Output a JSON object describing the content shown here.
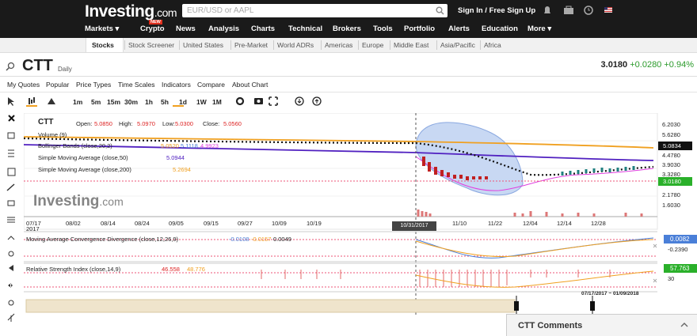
{
  "header": {
    "logo": "Investing",
    "logo_suffix": ".com",
    "search_placeholder": "EUR/USD or AAPL",
    "auth": "Sign In / Free Sign Up"
  },
  "nav": [
    "Markets ▾",
    "Crypto",
    "News",
    "Analysis",
    "Charts",
    "Technical",
    "Brokers",
    "Tools",
    "Portfolio",
    "Alerts",
    "Education",
    "More ▾"
  ],
  "crypto_badge": "NEW",
  "subnav": [
    "Stocks",
    "Stock Screener",
    "United States",
    "Pre-Market",
    "World ADRs",
    "Americas",
    "Europe",
    "Middle East",
    "Asia/Pacific",
    "Africa"
  ],
  "instrument": {
    "symbol": "CTT",
    "interval": "Daily",
    "price": "3.0180",
    "change": "+0.0280",
    "change_pct": "+0.94%"
  },
  "menu": [
    "My Quotes",
    "Popular",
    "Price Types",
    "Time Scales",
    "Indicators",
    "Compare",
    "About Chart"
  ],
  "timeframes": [
    "1m",
    "5m",
    "15m",
    "30m",
    "1h",
    "5h",
    "1d",
    "1W",
    "1M"
  ],
  "legend": {
    "symbol": "CTT",
    "open_label": "Open:",
    "open": "5.0850",
    "high_label": "High:",
    "high": "5.0970",
    "low_label": "Low:",
    "low": "5.0300",
    "close_label": "Close:",
    "close": "5.0560",
    "volume": "Volume (9)",
    "bb": "Bollinger Bands (close,20,2)",
    "bb_values": [
      "5.0520",
      "5.1118",
      "4.9923"
    ],
    "sma50": "Simple Moving Average (close,50)",
    "sma50_value": "5.0944",
    "sma200": "Simple Moving Average (close,200)",
    "sma200_value": "5.2694"
  },
  "watermark": "Investing",
  "watermark_suffix": ".com",
  "price_axis": [
    "6.2030",
    "5.6280",
    "5.0834",
    "4.4780",
    "3.9030",
    "3.3280",
    "3.0180",
    "2.1780",
    "1.6030"
  ],
  "x_axis": [
    "07/17",
    "08/02",
    "08/14",
    "08/24",
    "09/05",
    "09/15",
    "09/27",
    "10/09",
    "10/19",
    "10/31/2017",
    "11/10",
    "11/22",
    "12/04",
    "12/14",
    "12/28"
  ],
  "x_axis_year": "2017",
  "macd": {
    "title": "Moving Average Convergence Divergence (close,12,26,9)",
    "values": [
      "-0.0108",
      "-0.0157",
      "0.0049"
    ],
    "axis": [
      "0.0082",
      "-0.2390"
    ]
  },
  "rsi": {
    "title": "Relative Strength Index (close,14,9)",
    "values": [
      "46.558",
      "48.776"
    ],
    "axis": [
      "57.763",
      "30"
    ]
  },
  "navigator_range": "07/17/2017 ~ 01/09/2018",
  "comments_title": "CTT Comments"
}
